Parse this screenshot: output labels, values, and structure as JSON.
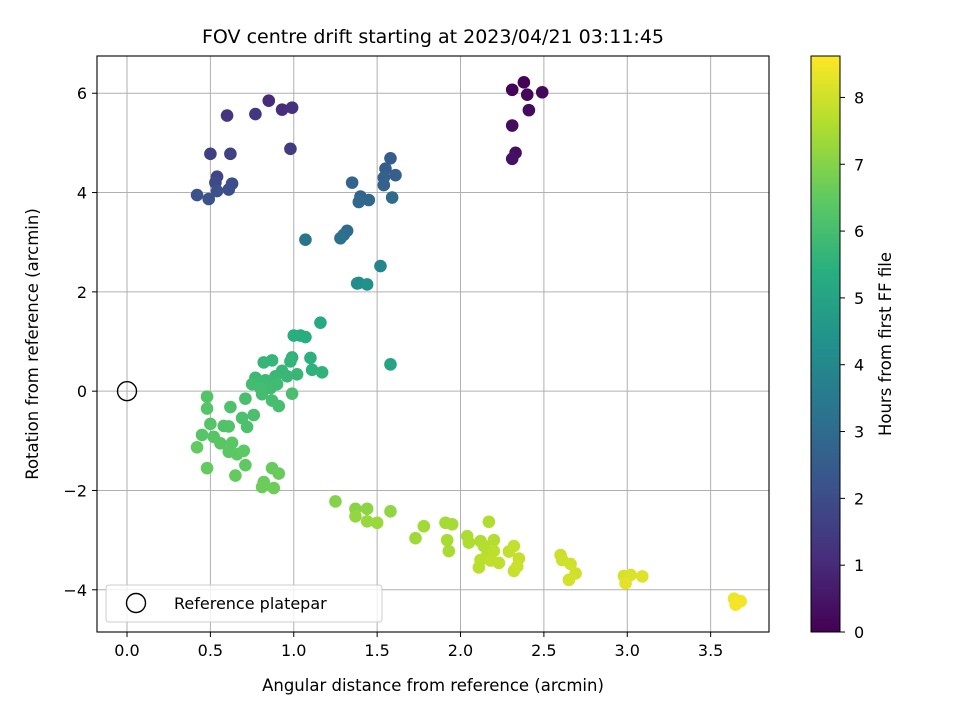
{
  "chart_data": {
    "type": "scatter",
    "title": "FOV centre drift starting at 2023/04/21 03:11:45",
    "xlabel": "Angular distance from reference (arcmin)",
    "ylabel": "Rotation from reference (arcmin)",
    "xlim": [
      -0.18,
      3.85
    ],
    "ylim": [
      -4.85,
      6.75
    ],
    "xticks": [
      0.0,
      0.5,
      1.0,
      1.5,
      2.0,
      2.5,
      3.0,
      3.5
    ],
    "yticks": [
      -4,
      -2,
      0,
      2,
      4,
      6
    ],
    "xtick_labels": [
      "0.0",
      "0.5",
      "1.0",
      "1.5",
      "2.0",
      "2.5",
      "3.0",
      "3.5"
    ],
    "ytick_labels": [
      "−4",
      "−2",
      "0",
      "2",
      "4",
      "6"
    ],
    "grid": true,
    "colormap": "viridis",
    "colorbar": {
      "label": "Hours from first FF file",
      "range": [
        0,
        8.62
      ],
      "ticks": [
        0,
        1,
        2,
        3,
        4,
        5,
        6,
        7,
        8
      ],
      "tick_labels": [
        "0",
        "1",
        "2",
        "3",
        "4",
        "5",
        "6",
        "7",
        "8"
      ]
    },
    "legend": {
      "label": "Reference platepar",
      "position": "lower-left"
    },
    "reference_point": {
      "x": 0.0,
      "y": 0.0
    },
    "points": [
      [
        2.38,
        6.22,
        0.05
      ],
      [
        2.31,
        6.07,
        0.1
      ],
      [
        2.4,
        5.97,
        0.15
      ],
      [
        2.49,
        6.02,
        0.2
      ],
      [
        2.41,
        5.66,
        0.25
      ],
      [
        2.31,
        5.35,
        0.3
      ],
      [
        2.33,
        4.8,
        0.35
      ],
      [
        2.31,
        4.68,
        0.4
      ],
      [
        0.85,
        5.85,
        1.0
      ],
      [
        0.93,
        5.67,
        1.1
      ],
      [
        0.99,
        5.71,
        1.2
      ],
      [
        0.6,
        5.55,
        1.3
      ],
      [
        0.77,
        5.58,
        1.4
      ],
      [
        0.98,
        4.88,
        1.5
      ],
      [
        0.5,
        4.78,
        1.6
      ],
      [
        0.62,
        4.78,
        1.7
      ],
      [
        0.54,
        4.32,
        1.8
      ],
      [
        0.53,
        4.2,
        1.9
      ],
      [
        0.63,
        4.18,
        2.0
      ],
      [
        0.61,
        4.06,
        2.05
      ],
      [
        0.54,
        4.03,
        2.1
      ],
      [
        0.42,
        3.95,
        2.15
      ],
      [
        0.49,
        3.87,
        2.2
      ],
      [
        1.58,
        4.69,
        2.5
      ],
      [
        1.55,
        4.48,
        2.55
      ],
      [
        1.61,
        4.35,
        2.6
      ],
      [
        1.54,
        4.3,
        2.65
      ],
      [
        1.54,
        4.15,
        2.7
      ],
      [
        1.35,
        4.2,
        2.75
      ],
      [
        1.4,
        3.92,
        2.8
      ],
      [
        1.45,
        3.85,
        2.85
      ],
      [
        1.39,
        3.81,
        2.9
      ],
      [
        1.59,
        3.9,
        2.95
      ],
      [
        1.32,
        3.23,
        3.0
      ],
      [
        1.3,
        3.15,
        3.1
      ],
      [
        1.28,
        3.08,
        3.2
      ],
      [
        1.07,
        3.05,
        3.3
      ],
      [
        1.52,
        2.52,
        3.9
      ],
      [
        1.39,
        2.18,
        4.1
      ],
      [
        1.38,
        2.17,
        4.2
      ],
      [
        1.44,
        2.15,
        4.3
      ],
      [
        1.58,
        0.54,
        5.0
      ],
      [
        1.16,
        1.38,
        5.2
      ],
      [
        1.04,
        1.12,
        5.3
      ],
      [
        1.07,
        1.09,
        5.35
      ],
      [
        1.0,
        1.12,
        5.4
      ],
      [
        1.1,
        0.67,
        5.45
      ],
      [
        1.11,
        0.43,
        5.5
      ],
      [
        1.17,
        0.38,
        5.55
      ],
      [
        0.99,
        0.68,
        5.6
      ],
      [
        0.98,
        0.6,
        5.62
      ],
      [
        0.87,
        0.62,
        5.65
      ],
      [
        0.82,
        0.58,
        5.68
      ],
      [
        0.93,
        0.41,
        5.7
      ],
      [
        1.02,
        0.34,
        5.72
      ],
      [
        0.96,
        0.3,
        5.75
      ],
      [
        0.89,
        0.3,
        5.78
      ],
      [
        0.83,
        0.22,
        5.8
      ],
      [
        0.77,
        0.27,
        5.82
      ],
      [
        0.81,
        0.16,
        5.85
      ],
      [
        0.86,
        0.06,
        5.88
      ],
      [
        0.9,
        0.14,
        5.9
      ],
      [
        0.75,
        0.14,
        5.92
      ],
      [
        0.8,
        0.06,
        5.94
      ],
      [
        0.81,
        -0.06,
        5.96
      ],
      [
        0.87,
        -0.19,
        5.98
      ],
      [
        0.91,
        -0.3,
        6.0
      ],
      [
        0.99,
        -0.05,
        6.02
      ],
      [
        0.71,
        -0.15,
        6.05
      ],
      [
        0.76,
        -0.48,
        6.08
      ],
      [
        0.69,
        -0.54,
        6.1
      ],
      [
        0.72,
        -0.72,
        6.12
      ],
      [
        0.62,
        -0.32,
        6.15
      ],
      [
        0.61,
        -0.71,
        6.18
      ],
      [
        0.58,
        -0.7,
        6.2
      ],
      [
        0.48,
        -0.11,
        6.22
      ],
      [
        0.48,
        -0.35,
        6.25
      ],
      [
        0.5,
        -0.66,
        6.28
      ],
      [
        0.45,
        -0.88,
        6.3
      ],
      [
        0.52,
        -0.92,
        6.32
      ],
      [
        0.56,
        -1.05,
        6.35
      ],
      [
        0.63,
        -1.04,
        6.38
      ],
      [
        0.61,
        -1.22,
        6.4
      ],
      [
        0.66,
        -1.27,
        6.42
      ],
      [
        0.7,
        -1.2,
        6.45
      ],
      [
        0.71,
        -1.49,
        6.48
      ],
      [
        0.42,
        -1.13,
        6.5
      ],
      [
        0.48,
        -1.55,
        6.52
      ],
      [
        0.65,
        -1.7,
        6.55
      ],
      [
        0.87,
        -1.55,
        6.58
      ],
      [
        0.91,
        -1.66,
        6.6
      ],
      [
        0.82,
        -1.83,
        6.62
      ],
      [
        0.81,
        -1.93,
        6.65
      ],
      [
        0.88,
        -1.95,
        6.68
      ],
      [
        1.25,
        -2.22,
        7.0
      ],
      [
        1.37,
        -2.37,
        7.05
      ],
      [
        1.44,
        -2.37,
        7.1
      ],
      [
        1.58,
        -2.42,
        7.15
      ],
      [
        1.37,
        -2.52,
        7.2
      ],
      [
        1.44,
        -2.62,
        7.25
      ],
      [
        1.5,
        -2.65,
        7.3
      ],
      [
        1.73,
        -2.96,
        7.35
      ],
      [
        1.78,
        -2.72,
        7.4
      ],
      [
        1.91,
        -2.65,
        7.42
      ],
      [
        1.95,
        -2.68,
        7.45
      ],
      [
        1.92,
        -3.0,
        7.48
      ],
      [
        1.93,
        -3.22,
        7.5
      ],
      [
        2.04,
        -2.92,
        7.52
      ],
      [
        2.05,
        -3.05,
        7.55
      ],
      [
        2.12,
        -3.02,
        7.58
      ],
      [
        2.17,
        -2.63,
        7.6
      ],
      [
        2.14,
        -3.12,
        7.62
      ],
      [
        2.2,
        -3.0,
        7.65
      ],
      [
        2.16,
        -3.3,
        7.68
      ],
      [
        2.12,
        -3.4,
        7.7
      ],
      [
        2.11,
        -3.55,
        7.72
      ],
      [
        2.2,
        -3.22,
        7.75
      ],
      [
        2.18,
        -3.41,
        7.78
      ],
      [
        2.23,
        -3.46,
        7.8
      ],
      [
        2.29,
        -3.23,
        7.82
      ],
      [
        2.32,
        -3.12,
        7.85
      ],
      [
        2.35,
        -3.37,
        7.88
      ],
      [
        2.32,
        -3.62,
        7.9
      ],
      [
        2.34,
        -3.53,
        7.92
      ],
      [
        2.6,
        -3.3,
        7.95
      ],
      [
        2.61,
        -3.4,
        7.98
      ],
      [
        2.66,
        -3.48,
        8.0
      ],
      [
        2.69,
        -3.67,
        8.02
      ],
      [
        2.65,
        -3.8,
        8.05
      ],
      [
        2.98,
        -3.72,
        8.1
      ],
      [
        3.02,
        -3.7,
        8.15
      ],
      [
        3.09,
        -3.73,
        8.2
      ],
      [
        2.99,
        -3.87,
        8.25
      ],
      [
        3.64,
        -4.18,
        8.4
      ],
      [
        3.68,
        -4.23,
        8.45
      ],
      [
        3.65,
        -4.3,
        8.5
      ]
    ]
  }
}
